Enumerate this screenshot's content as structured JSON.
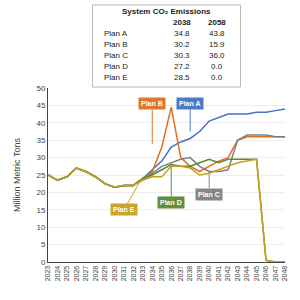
{
  "chart_data": {
    "type": "line",
    "y_label": "Million Metric Tons",
    "x": [
      2023,
      2024,
      2025,
      2026,
      2027,
      2028,
      2029,
      2030,
      2031,
      2032,
      2033,
      2034,
      2035,
      2036,
      2037,
      2038,
      2039,
      2040,
      2041,
      2042,
      2043,
      2044,
      2045,
      2046,
      2047,
      2048
    ],
    "series": [
      {
        "color": "#4472C4",
        "values": [
          25.0,
          23.5,
          24.5,
          27.0,
          26.0,
          24.5,
          22.5,
          21.5,
          22.0,
          22.0,
          24.0,
          26.5,
          29.0,
          33.0,
          34.5,
          35.5,
          37.5,
          40.5,
          41.5,
          42.5,
          42.5,
          42.5,
          43.0,
          43.0,
          43.5,
          44.0
        ]
      },
      {
        "color": "#E07020",
        "values": [
          25.0,
          23.5,
          24.5,
          27.0,
          26.0,
          24.5,
          22.5,
          21.5,
          22.0,
          22.0,
          24.0,
          26.0,
          33.0,
          44.5,
          30.0,
          27.5,
          26.0,
          27.5,
          29.0,
          30.0,
          35.0,
          36.0,
          36.0,
          36.0,
          36.0,
          36.0
        ]
      },
      {
        "color": "#808080",
        "values": [
          25.0,
          23.5,
          24.5,
          27.0,
          26.0,
          24.5,
          22.5,
          21.5,
          22.0,
          22.0,
          24.0,
          25.5,
          27.5,
          28.5,
          29.5,
          30.0,
          27.5,
          26.0,
          26.0,
          26.5,
          35.0,
          36.5,
          36.5,
          36.5,
          36.0,
          36.0
        ]
      },
      {
        "color": "#5A8A30",
        "values": [
          25.0,
          23.5,
          24.5,
          27.0,
          26.0,
          24.5,
          22.5,
          21.5,
          22.0,
          22.0,
          24.0,
          25.0,
          26.5,
          28.0,
          27.5,
          27.5,
          28.5,
          29.5,
          28.5,
          29.5,
          29.5,
          29.5,
          29.5,
          0.5,
          0.0,
          0.0
        ]
      },
      {
        "color": "#C8A020",
        "values": [
          25.0,
          23.5,
          24.5,
          27.0,
          26.0,
          24.5,
          22.5,
          21.5,
          22.0,
          22.0,
          23.5,
          24.5,
          24.5,
          27.5,
          27.5,
          27.0,
          25.0,
          25.5,
          26.5,
          27.5,
          28.5,
          29.0,
          29.5,
          0.5,
          0.0,
          0.0
        ]
      }
    ],
    "xlim": [
      2023,
      2048
    ],
    "xticks": [
      2023,
      2024,
      2025,
      2026,
      2027,
      2028,
      2029,
      2030,
      2031,
      2032,
      2033,
      2034,
      2035,
      2036,
      2037,
      2038,
      2039,
      2040,
      2041,
      2042,
      2043,
      2044,
      2045,
      2046,
      2047,
      2048
    ],
    "ylim": [
      0,
      50
    ],
    "yticks": [
      0,
      5,
      10,
      15,
      20,
      25,
      30,
      35,
      40,
      45,
      50
    ],
    "grid": "y",
    "annotations": [
      {
        "text": "Plan A",
        "x": 2038,
        "y": 37.5,
        "text_x": 2038,
        "text_y": 45.5,
        "color": "#4472C4"
      },
      {
        "text": "Plan B",
        "x": 2034,
        "y": 34.0,
        "text_x": 2034,
        "text_y": 45.5,
        "color": "#E07020"
      },
      {
        "text": "Plan C",
        "x": 2040,
        "y": 26.0,
        "text_x": 2040,
        "text_y": 19.5,
        "color": "#808080"
      },
      {
        "text": "Plan D",
        "x": 2036,
        "y": 27.5,
        "text_x": 2036,
        "text_y": 17.0,
        "color": "#5A8A30"
      },
      {
        "text": "Plan E",
        "x": 2033,
        "y": 24.5,
        "text_x": 2031,
        "text_y": 15.0,
        "color": "#C8A020"
      }
    ],
    "table": {
      "title": "System CO₂ Emissions",
      "headers": [
        "2038",
        "2058"
      ],
      "rows": [
        [
          "Plan A",
          "34.8",
          "43.8"
        ],
        [
          "Plan B",
          "30.2",
          "15.9"
        ],
        [
          "Plan C",
          "30.3",
          "36.0"
        ],
        [
          "Plan D",
          "27.2",
          "0.0"
        ],
        [
          "Plan E",
          "28.5",
          "0.0"
        ]
      ]
    }
  }
}
